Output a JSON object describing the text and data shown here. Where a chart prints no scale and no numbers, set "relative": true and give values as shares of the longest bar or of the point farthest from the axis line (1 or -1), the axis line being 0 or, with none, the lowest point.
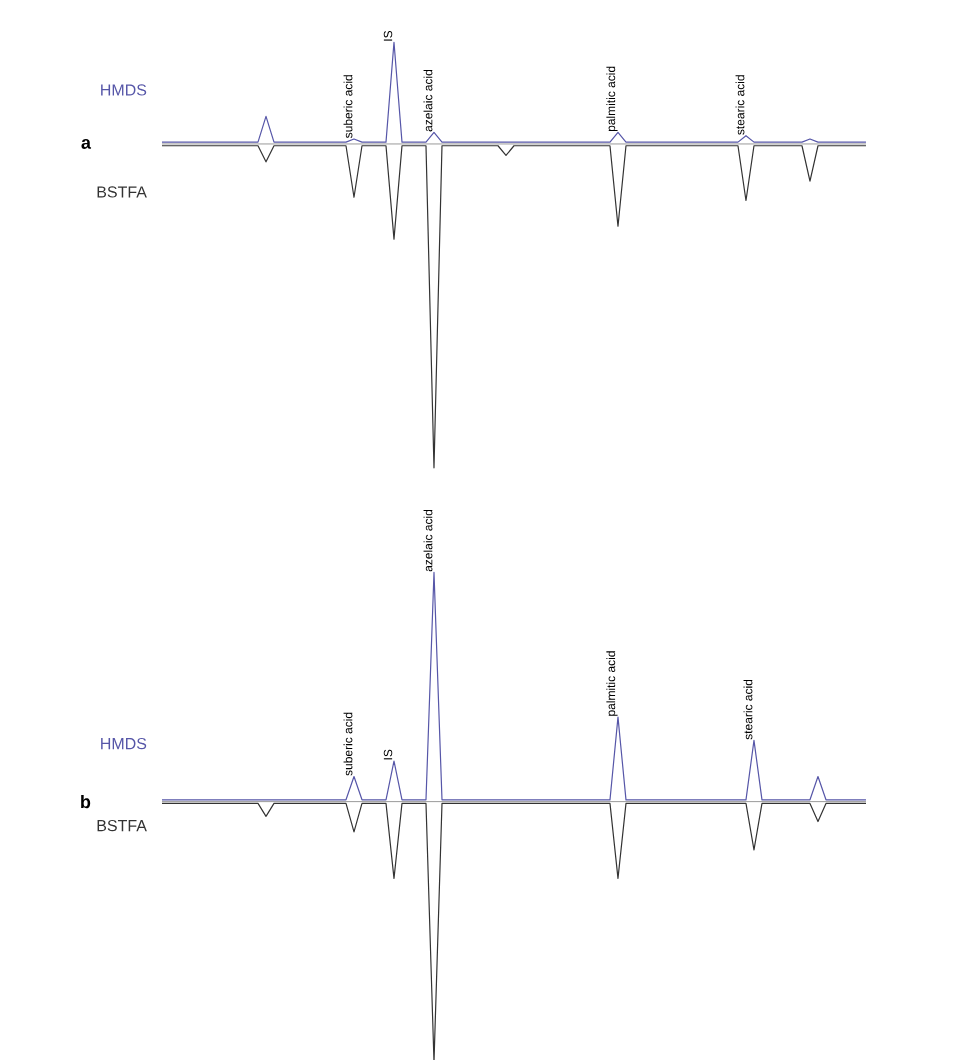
{
  "chart_data": [
    {
      "type": "line",
      "title": "a",
      "relative": true,
      "marker": "none",
      "line_style": "solid",
      "categories": [
        null,
        null,
        null,
        null,
        null,
        null,
        null,
        null,
        null,
        null,
        null,
        null,
        null,
        null,
        null,
        null,
        null,
        null,
        null,
        null,
        null,
        null,
        null,
        null,
        null,
        null,
        null,
        null,
        null,
        null,
        null,
        null,
        null,
        null,
        null,
        null,
        null,
        null,
        null,
        null,
        null,
        null,
        null,
        null,
        null,
        null,
        null,
        null,
        null,
        null,
        null,
        null,
        null,
        null,
        null,
        null,
        null,
        null,
        null,
        null,
        null,
        null,
        null,
        null,
        null,
        null,
        null,
        null,
        null,
        null,
        null,
        null,
        null,
        null,
        null,
        null,
        null,
        null,
        null,
        null,
        null,
        null,
        null,
        null,
        null,
        null,
        null,
        null,
        null
      ],
      "series": [
        {
          "name": "HMDS",
          "color": "#5656a8",
          "values": [
            0,
            0,
            0,
            0,
            0,
            0,
            0,
            0,
            0,
            0,
            0,
            0,
            0,
            0.08,
            0,
            0,
            0,
            0,
            0,
            0,
            0,
            0,
            0,
            0,
            0.01,
            0,
            0,
            0,
            0,
            0.31,
            0,
            0,
            0,
            0,
            0.03,
            0,
            0,
            0,
            0,
            0,
            0,
            0,
            0,
            0,
            0,
            0,
            0,
            0,
            0,
            0,
            0,
            0,
            0,
            0,
            0,
            0,
            0,
            0.03,
            0,
            0,
            0,
            0,
            0,
            0,
            0,
            0,
            0,
            0,
            0,
            0,
            0,
            0,
            0,
            0.02,
            0,
            0,
            0,
            0,
            0,
            0,
            0,
            0.01,
            0,
            0,
            0,
            0,
            0,
            0,
            0
          ]
        },
        {
          "name": "BSTFA",
          "color": "#333333",
          "values": [
            0,
            0,
            0,
            0,
            0,
            0,
            0,
            0,
            0,
            0,
            0,
            0,
            0,
            -0.05,
            0,
            0,
            0,
            0,
            0,
            0,
            0,
            0,
            0,
            0,
            -0.16,
            0,
            0,
            0,
            0,
            -0.29,
            0,
            0,
            0,
            0,
            -1,
            0,
            0,
            0,
            0,
            0,
            0,
            0,
            0,
            -0.03,
            0,
            0,
            0,
            0,
            0,
            0,
            0,
            0,
            0,
            0,
            0,
            0,
            0,
            -0.25,
            0,
            0,
            0,
            0,
            0,
            0,
            0,
            0,
            0,
            0,
            0,
            0,
            0,
            0,
            0,
            -0.17,
            0,
            0,
            0,
            0,
            0,
            0,
            0,
            -0.11,
            0,
            0,
            0,
            0,
            0,
            0,
            0
          ]
        }
      ],
      "annotations": [
        "suberic acid",
        "IS",
        "azelaic acid",
        "palmitic acid",
        "stearic acid"
      ]
    },
    {
      "type": "line",
      "title": "b",
      "relative": true,
      "marker": "none",
      "line_style": "solid",
      "categories": [
        null,
        null,
        null,
        null,
        null,
        null,
        null,
        null,
        null,
        null,
        null,
        null,
        null,
        null,
        null,
        null,
        null,
        null,
        null,
        null,
        null,
        null,
        null,
        null,
        null,
        null,
        null,
        null,
        null,
        null,
        null,
        null,
        null,
        null,
        null,
        null,
        null,
        null,
        null,
        null,
        null,
        null,
        null,
        null,
        null,
        null,
        null,
        null,
        null,
        null,
        null,
        null,
        null,
        null,
        null,
        null,
        null,
        null,
        null,
        null,
        null,
        null,
        null,
        null,
        null,
        null,
        null,
        null,
        null,
        null,
        null,
        null,
        null,
        null,
        null,
        null,
        null,
        null,
        null,
        null,
        null,
        null,
        null,
        null,
        null,
        null,
        null,
        null,
        null
      ],
      "series": [
        {
          "name": "HMDS",
          "color": "#5656a8",
          "values": [
            0,
            0,
            0,
            0,
            0,
            0,
            0,
            0,
            0,
            0,
            0,
            0,
            0,
            0,
            0,
            0,
            0,
            0,
            0,
            0,
            0,
            0,
            0,
            0,
            0.09,
            0,
            0,
            0,
            0,
            0.15,
            0,
            0,
            0,
            0,
            0.88,
            0,
            0,
            0,
            0,
            0,
            0,
            0,
            0,
            0,
            0,
            0,
            0,
            0,
            0,
            0,
            0,
            0,
            0,
            0,
            0,
            0,
            0,
            0.32,
            0,
            0,
            0,
            0,
            0,
            0,
            0,
            0,
            0,
            0,
            0,
            0,
            0,
            0,
            0,
            0,
            0.23,
            0,
            0,
            0,
            0,
            0,
            0,
            0,
            0.09,
            0,
            0,
            0,
            0,
            0,
            0
          ]
        },
        {
          "name": "BSTFA",
          "color": "#333333",
          "values": [
            0,
            0,
            0,
            0,
            0,
            0,
            0,
            0,
            0,
            0,
            0,
            0,
            0,
            -0.05,
            0,
            0,
            0,
            0,
            0,
            0,
            0,
            0,
            0,
            0,
            -0.11,
            0,
            0,
            0,
            0,
            -0.29,
            0,
            0,
            0,
            0,
            -1,
            0,
            0,
            0,
            0,
            0,
            0,
            0,
            0,
            0,
            0,
            0,
            0,
            0,
            0,
            0,
            0,
            0,
            0,
            0,
            0,
            0,
            0,
            -0.29,
            0,
            0,
            0,
            0,
            0,
            0,
            0,
            0,
            0,
            0,
            0,
            0,
            0,
            0,
            0,
            0,
            -0.18,
            0,
            0,
            0,
            0,
            0,
            0,
            0,
            -0.07,
            0,
            0,
            0,
            0,
            0,
            0
          ]
        }
      ],
      "annotations": [
        "suberic acid",
        "IS",
        "azelaic acid",
        "palmitic acid",
        "stearic acid"
      ]
    }
  ]
}
